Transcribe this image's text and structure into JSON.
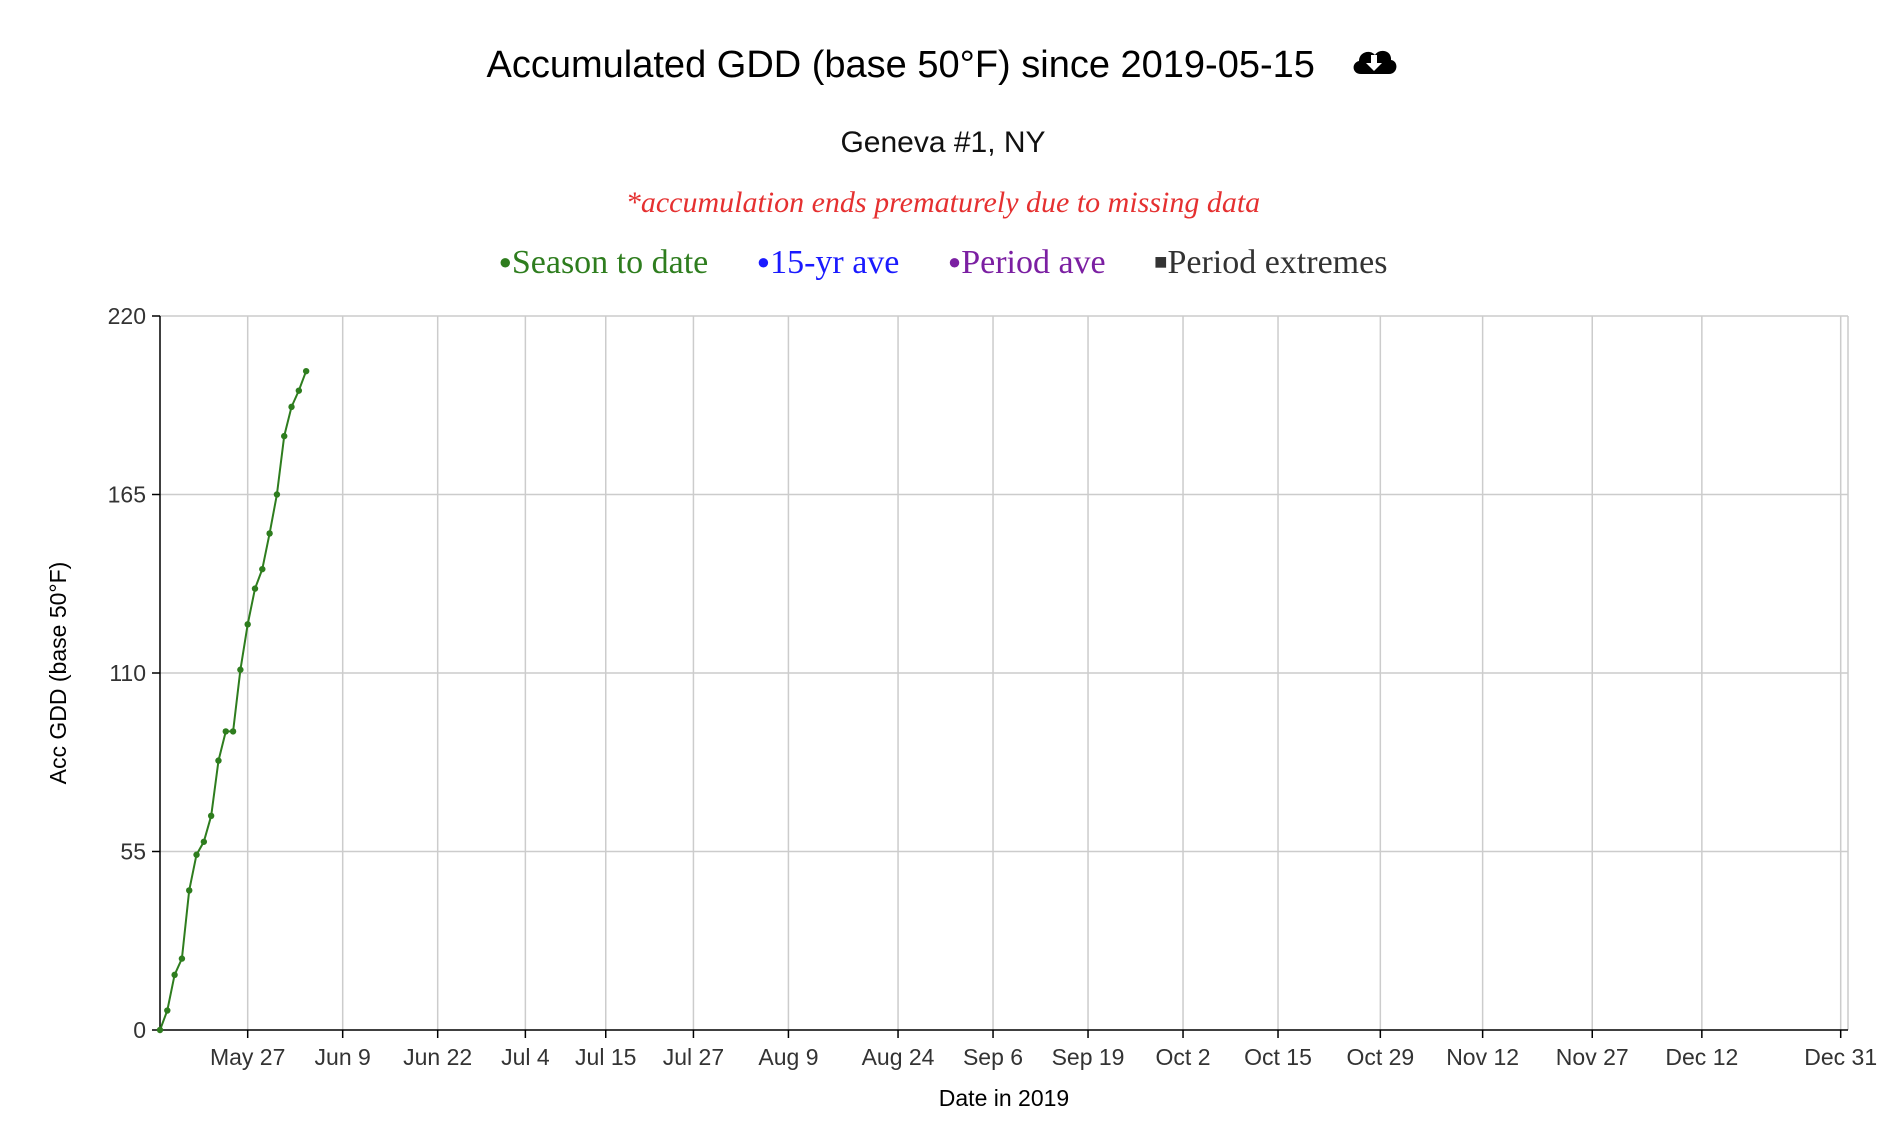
{
  "header": {
    "title": "Accumulated GDD (base 50°F) since 2019-05-15",
    "download_icon": "cloud-download-icon",
    "subtitle": "Geneva #1, NY",
    "note": "*accumulation ends prematurely due to missing data"
  },
  "legend": [
    {
      "marker": "●",
      "label": "Season to date",
      "color": "#2e7d1e"
    },
    {
      "marker": "●",
      "label": "15-yr ave",
      "color": "#1a1aff"
    },
    {
      "marker": "●",
      "label": "Period ave",
      "color": "#7b1fa2"
    },
    {
      "marker": "■",
      "label": "Period extremes",
      "color": "#333333"
    }
  ],
  "chart_data": {
    "type": "line",
    "xlabel": "Date in 2019",
    "ylabel": "Acc GDD (base 50°F)",
    "ylim": [
      0,
      220
    ],
    "xlim": [
      "2019-05-15",
      "2020-01-01"
    ],
    "yticks": [
      0,
      55,
      110,
      165,
      220
    ],
    "xticks": [
      {
        "date": "2019-05-27",
        "label": "May 27"
      },
      {
        "date": "2019-06-09",
        "label": "Jun 9"
      },
      {
        "date": "2019-06-22",
        "label": "Jun 22"
      },
      {
        "date": "2019-07-04",
        "label": "Jul 4"
      },
      {
        "date": "2019-07-15",
        "label": "Jul 15"
      },
      {
        "date": "2019-07-27",
        "label": "Jul 27"
      },
      {
        "date": "2019-08-09",
        "label": "Aug 9"
      },
      {
        "date": "2019-08-24",
        "label": "Aug 24"
      },
      {
        "date": "2019-09-06",
        "label": "Sep 6"
      },
      {
        "date": "2019-09-19",
        "label": "Sep 19"
      },
      {
        "date": "2019-10-02",
        "label": "Oct 2"
      },
      {
        "date": "2019-10-15",
        "label": "Oct 15"
      },
      {
        "date": "2019-10-29",
        "label": "Oct 29"
      },
      {
        "date": "2019-11-12",
        "label": "Nov 12"
      },
      {
        "date": "2019-11-27",
        "label": "Nov 27"
      },
      {
        "date": "2019-12-12",
        "label": "Dec 12"
      },
      {
        "date": "2019-12-31",
        "label": "Dec 31"
      }
    ],
    "grid": true,
    "series": [
      {
        "name": "Season to date",
        "color": "#2e7d1e",
        "x": [
          "2019-05-15",
          "2019-05-16",
          "2019-05-17",
          "2019-05-18",
          "2019-05-19",
          "2019-05-20",
          "2019-05-21",
          "2019-05-22",
          "2019-05-23",
          "2019-05-24",
          "2019-05-25",
          "2019-05-26",
          "2019-05-27",
          "2019-05-28",
          "2019-05-29",
          "2019-05-30",
          "2019-05-31",
          "2019-06-01",
          "2019-06-02",
          "2019-06-03",
          "2019-06-04"
        ],
        "values": [
          0,
          6,
          17,
          22,
          43,
          54,
          58,
          66,
          83,
          92,
          92,
          111,
          125,
          136,
          142,
          153,
          165,
          183,
          192,
          197,
          203
        ]
      }
    ]
  }
}
